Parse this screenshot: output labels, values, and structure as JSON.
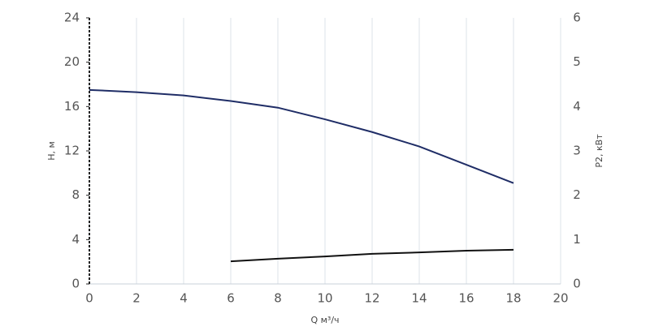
{
  "chart_data": {
    "type": "line",
    "xlabel": "Q м³/ч",
    "ylabel": "H, м",
    "y2label": "P2, кВт",
    "x": [
      0,
      2,
      4,
      6,
      8,
      10,
      12,
      14,
      16,
      18
    ],
    "series": [
      {
        "color": "#1f2d66",
        "values": [
          17.5,
          17.3,
          17.0,
          16.5,
          15.9,
          14.85,
          13.7,
          12.4,
          10.75,
          9.1
        ]
      },
      {
        "color": "#111111",
        "axis": "y2",
        "values": [
          null,
          null,
          null,
          0.51,
          0.57,
          0.62,
          0.68,
          0.71,
          0.75,
          0.77
        ]
      }
    ],
    "xlim": [
      0,
      20
    ],
    "xticks": [
      0,
      2,
      4,
      6,
      8,
      10,
      12,
      14,
      16,
      18,
      20
    ],
    "ylim": [
      0,
      24
    ],
    "yticks": [
      0,
      4,
      8,
      12,
      16,
      20,
      24
    ],
    "y2lim": [
      0,
      6
    ],
    "y2ticks": [
      0,
      1,
      2,
      3,
      4,
      5,
      6
    ],
    "grid": true
  }
}
